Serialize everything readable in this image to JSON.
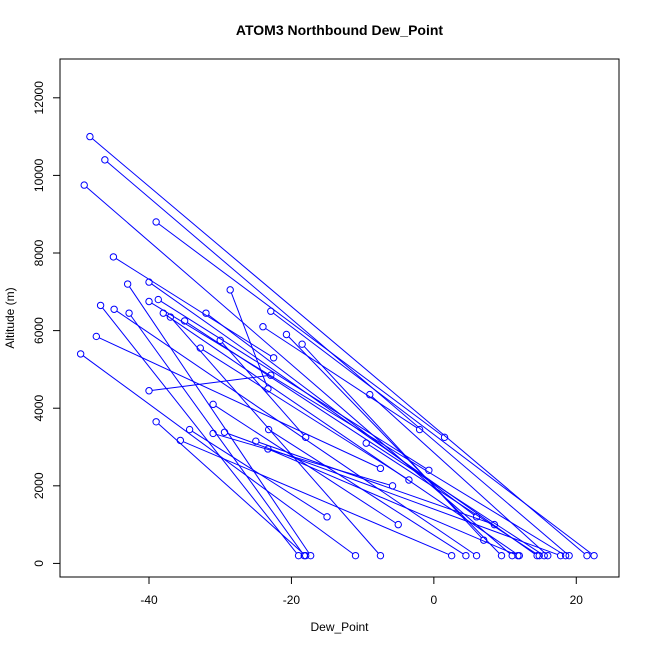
{
  "chart_data": {
    "type": "scatter",
    "title": "ATOM3 Northbound Dew_Point",
    "xlabel": "Dew_Point",
    "ylabel": "Altitude (m)",
    "xlim": [
      -52.5,
      26.0
    ],
    "ylim": [
      -350,
      13000
    ],
    "xticks": [
      -40,
      -20,
      0,
      20
    ],
    "yticks": [
      0,
      2000,
      4000,
      6000,
      8000,
      10000,
      12000
    ],
    "xtick_labels": [
      "-40",
      "-20",
      "0",
      "20"
    ],
    "ytick_labels": [
      "0",
      "2000",
      "4000",
      "6000",
      "8000",
      "10000",
      "12000"
    ],
    "color": "#0000ff",
    "marker": "open-circle",
    "grid": false,
    "legend": "none",
    "series": [
      {
        "x": [
          -48.3,
          21.5
        ],
        "y": [
          11000,
          200
        ]
      },
      {
        "x": [
          -46.2,
          19.0
        ],
        "y": [
          10400,
          200
        ]
      },
      {
        "x": [
          -49.1,
          11.0
        ],
        "y": [
          9750,
          200
        ]
      },
      {
        "x": [
          -39.0,
          1.5
        ],
        "y": [
          8800,
          3250
        ]
      },
      {
        "x": [
          -45.0,
          -22.5
        ],
        "y": [
          7900,
          5300
        ]
      },
      {
        "x": [
          -43.0,
          -17.3
        ],
        "y": [
          7200,
          200
        ]
      },
      {
        "x": [
          -40.0,
          14.5
        ],
        "y": [
          7250,
          200
        ]
      },
      {
        "x": [
          -28.6,
          -23.3
        ],
        "y": [
          7050,
          4500
        ]
      },
      {
        "x": [
          -22.9,
          22.5
        ],
        "y": [
          6500,
          200
        ]
      },
      {
        "x": [
          -24.0,
          -2.0
        ],
        "y": [
          6100,
          3450
        ]
      },
      {
        "x": [
          -32.0,
          6.0
        ],
        "y": [
          6450,
          1200
        ]
      },
      {
        "x": [
          -20.7,
          9.5
        ],
        "y": [
          5900,
          200
        ]
      },
      {
        "x": [
          -37.0,
          -7.5
        ],
        "y": [
          6350,
          200
        ]
      },
      {
        "x": [
          -18.5,
          7.0
        ],
        "y": [
          5650,
          600
        ]
      },
      {
        "x": [
          -35.0,
          15.5
        ],
        "y": [
          6250,
          200
        ]
      },
      {
        "x": [
          -30.0,
          -18.0
        ],
        "y": [
          5750,
          3250
        ]
      },
      {
        "x": [
          -32.8,
          -3.5
        ],
        "y": [
          5550,
          2150
        ]
      },
      {
        "x": [
          -38.7,
          -0.7
        ],
        "y": [
          6800,
          2400
        ]
      },
      {
        "x": [
          -40.0,
          18.5
        ],
        "y": [
          6750,
          200
        ]
      },
      {
        "x": [
          -46.8,
          -19.0
        ],
        "y": [
          6650,
          200
        ]
      },
      {
        "x": [
          -44.9,
          6.0
        ],
        "y": [
          6550,
          200
        ]
      },
      {
        "x": [
          -42.8,
          -18.2
        ],
        "y": [
          6450,
          200
        ]
      },
      {
        "x": [
          -38.0,
          12.0
        ],
        "y": [
          6450,
          200
        ]
      },
      {
        "x": [
          -47.4,
          -7.5
        ],
        "y": [
          5850,
          2450
        ]
      },
      {
        "x": [
          -49.6,
          -11.0
        ],
        "y": [
          5400,
          200
        ]
      },
      {
        "x": [
          -40.0,
          -22.9
        ],
        "y": [
          4450,
          4850
        ]
      },
      {
        "x": [
          -9.0,
          16.0
        ],
        "y": [
          4350,
          200
        ]
      },
      {
        "x": [
          -31.0,
          -5.0
        ],
        "y": [
          4100,
          1000
        ]
      },
      {
        "x": [
          -39.0,
          -18.0
        ],
        "y": [
          3650,
          200
        ]
      },
      {
        "x": [
          -34.3,
          -15.0
        ],
        "y": [
          3450,
          1200
        ]
      },
      {
        "x": [
          -23.2,
          4.5
        ],
        "y": [
          3450,
          200
        ]
      },
      {
        "x": [
          -31.0,
          -5.8
        ],
        "y": [
          3350,
          2000
        ]
      },
      {
        "x": [
          -29.4,
          17.8
        ],
        "y": [
          3380,
          200
        ]
      },
      {
        "x": [
          -25.0,
          8.5
        ],
        "y": [
          3150,
          1000
        ]
      },
      {
        "x": [
          -35.6,
          2.5
        ],
        "y": [
          3170,
          200
        ]
      },
      {
        "x": [
          -23.3,
          11.8
        ],
        "y": [
          2950,
          200
        ]
      },
      {
        "x": [
          -9.5,
          14.8
        ],
        "y": [
          3100,
          200
        ]
      }
    ]
  }
}
